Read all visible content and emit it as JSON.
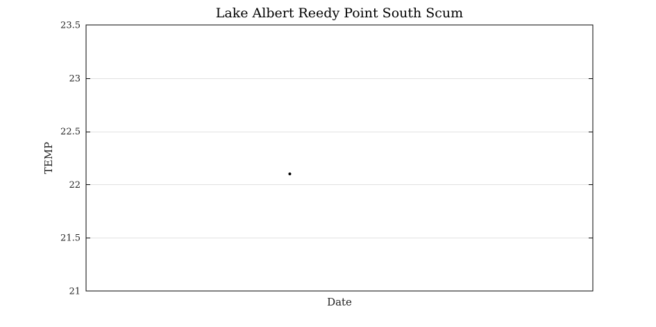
{
  "chart_data": {
    "type": "scatter",
    "title": "Lake Albert Reedy Point South Scum",
    "xlabel": "Date",
    "ylabel": "TEMP",
    "ylim": [
      21,
      23.5
    ],
    "yticks": [
      21,
      21.5,
      22,
      22.5,
      23,
      23.5
    ],
    "ytick_labels": [
      "21",
      "21.5",
      "22",
      "22.5",
      "23",
      "23.5"
    ],
    "xlim": [
      0,
      1
    ],
    "grid": "horizontal",
    "series": [
      {
        "x": [
          0.402
        ],
        "y": [
          22.1
        ],
        "color": "#000000"
      }
    ]
  }
}
